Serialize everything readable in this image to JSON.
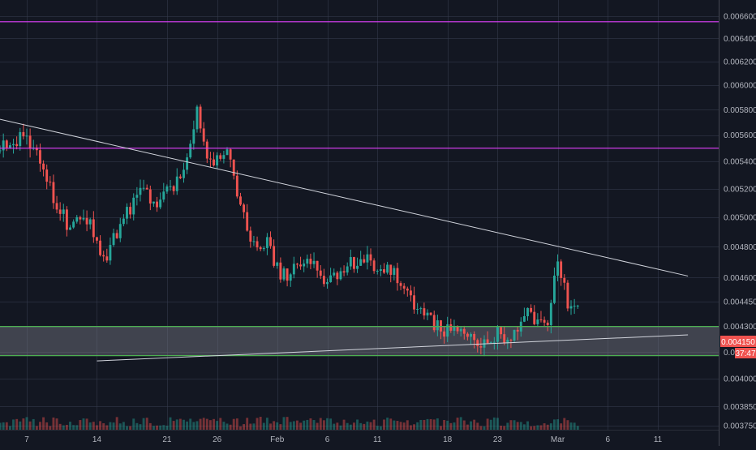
{
  "chart_data": {
    "type": "candlestick",
    "price_axis": {
      "ticks": [
        "0.006600",
        "0.006400",
        "0.006200",
        "0.006000",
        "0.005800",
        "0.005600",
        "0.005400",
        "0.005200",
        "0.005000",
        "0.004800",
        "0.004600",
        "0.004450",
        "0.004300",
        "0.004150",
        "0.004000",
        "0.003850",
        "0.003750"
      ],
      "scale": "log"
    },
    "time_axis": {
      "ticks": [
        "7",
        "14",
        "21",
        "26",
        "Feb",
        "6",
        "11",
        "18",
        "23",
        "Mar",
        "6",
        "11"
      ]
    },
    "current_price": {
      "label": "0.004150",
      "timer": "37:47",
      "color": "#ef5350"
    },
    "horizontal_lines": [
      {
        "price": 0.00655,
        "color": "#e040fb"
      },
      {
        "price": 0.0055,
        "color": "#e040fb"
      },
      {
        "price": 0.0043,
        "color": "#4caf50"
      },
      {
        "price": 0.00413,
        "color": "#4caf50"
      }
    ],
    "zone": {
      "top": 0.0043,
      "bottom": 0.00413,
      "color": "#787b86"
    },
    "trendlines": [
      {
        "from": [
          "Jan 4",
          0.00573
        ],
        "to": [
          "Mar 14",
          0.00461
        ],
        "color": "#d1d4dc"
      },
      {
        "from": [
          "Jan 14",
          0.0041
        ],
        "to": [
          "Mar 14",
          0.00425
        ],
        "color": "#d1d4dc"
      }
    ],
    "series_shape": [
      [
        "Jan 4",
        0.0055
      ],
      [
        "Jan 7",
        0.0056
      ],
      [
        "Jan 10",
        0.0051
      ],
      [
        "Jan 11",
        0.00495
      ],
      [
        "Jan 13",
        0.005
      ],
      [
        "Jan 14",
        0.0048
      ],
      [
        "Jan 15",
        0.00475
      ],
      [
        "Jan 17",
        0.00505
      ],
      [
        "Jan 19",
        0.0052
      ],
      [
        "Jan 20",
        0.00505
      ],
      [
        "Jan 21",
        0.0052
      ],
      [
        "Jan 22",
        0.00525
      ],
      [
        "Jan 23",
        0.00545
      ],
      [
        "Jan 24",
        0.0058
      ],
      [
        "Jan 25",
        0.0054
      ],
      [
        "Jan 27",
        0.00545
      ],
      [
        "Jan 28",
        0.0052
      ],
      [
        "Jan 29",
        0.0049
      ],
      [
        "Jan 30",
        0.0048
      ],
      [
        "Jan 31",
        0.00485
      ],
      [
        "Feb 1",
        0.00465
      ],
      [
        "Feb 2",
        0.0046
      ],
      [
        "Feb 3",
        0.0047
      ],
      [
        "Feb 5",
        0.00465
      ],
      [
        "Feb 6",
        0.00455
      ],
      [
        "Feb 8",
        0.0047
      ],
      [
        "Feb 10",
        0.0047
      ],
      [
        "Feb 12",
        0.00465
      ],
      [
        "Feb 14",
        0.00455
      ],
      [
        "Feb 15",
        0.0044
      ],
      [
        "Feb 17",
        0.0043
      ],
      [
        "Feb 19",
        0.00425
      ],
      [
        "Feb 21",
        0.0042
      ],
      [
        "Feb 23",
        0.00425
      ],
      [
        "Feb 24",
        0.0042
      ],
      [
        "Feb 26",
        0.0044
      ],
      [
        "Feb 27",
        0.00432
      ],
      [
        "Feb 28",
        0.0043
      ],
      [
        "Mar 1",
        0.0047
      ],
      [
        "Mar 2",
        0.00445
      ],
      [
        "Mar 3",
        0.0044
      ]
    ],
    "colors": {
      "up": "#26a69a",
      "down": "#ef5350",
      "background": "#131722",
      "grid": "#363c4e"
    },
    "grid": true
  }
}
